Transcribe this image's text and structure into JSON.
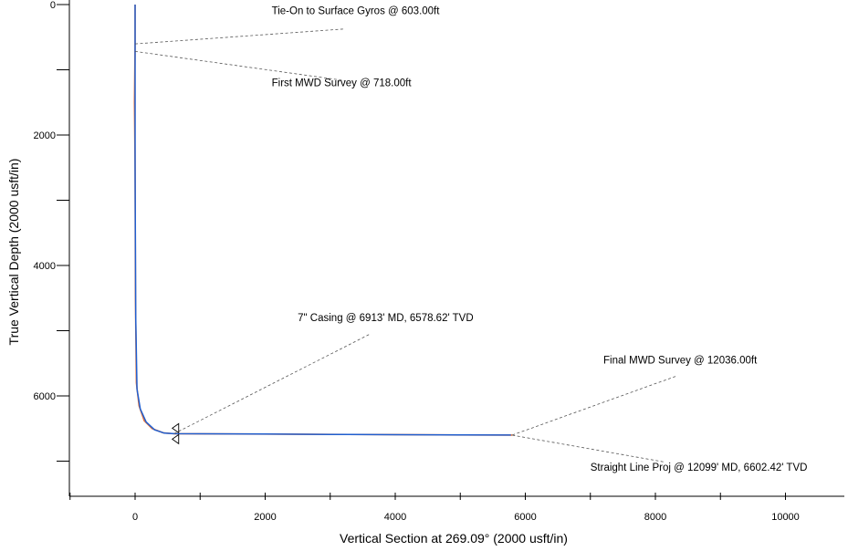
{
  "chart_data": {
    "type": "line",
    "title": "",
    "xlabel": "Vertical Section at 269.09° (2000 usft/in)",
    "ylabel": "True Vertical Depth (2000 usft/in)",
    "xlim": [
      -1000,
      11000
    ],
    "ylim": [
      0,
      7600
    ],
    "y_inverted": true,
    "grid": false,
    "x_ticks": [
      0,
      2000,
      4000,
      6000,
      8000,
      10000
    ],
    "y_ticks": [
      0,
      2000,
      4000,
      6000
    ],
    "series": [
      {
        "color": "#e8743b",
        "x": [
          0,
          0,
          -10,
          0,
          5,
          20,
          60,
          140,
          260,
          430,
          600,
          1000,
          2000,
          3000,
          4000,
          5000,
          5800
        ],
        "y": [
          0,
          603,
          1500,
          2500,
          4500,
          5800,
          6150,
          6380,
          6500,
          6565,
          6580,
          6582,
          6585,
          6590,
          6593,
          6598,
          6600
        ]
      },
      {
        "color": "#1f5fd0",
        "x": [
          0,
          0,
          0,
          0,
          10,
          30,
          80,
          170,
          300,
          450,
          600,
          1000,
          2000,
          3000,
          4000,
          5000,
          5780
        ],
        "y": [
          0,
          603,
          718,
          2500,
          4800,
          5900,
          6200,
          6400,
          6520,
          6570,
          6579,
          6580,
          6585,
          6590,
          6594,
          6598,
          6600
        ]
      }
    ],
    "annotations": [
      {
        "text": "Tie-On to Surface Gyros @ 603.00ft",
        "point": [
          0,
          603
        ],
        "label_at": [
          2100,
          150
        ]
      },
      {
        "text": "First MWD Survey @ 718.00ft",
        "point": [
          0,
          718
        ],
        "label_at": [
          2100,
          1250
        ]
      },
      {
        "text": "7\" Casing @ 6913' MD, 6578.62' TVD",
        "point": [
          600,
          6579
        ],
        "label_at": [
          2500,
          4850
        ]
      },
      {
        "text": "Final MWD Survey @ 12036.00ft",
        "point": [
          5800,
          6600
        ],
        "label_at": [
          7200,
          5500
        ]
      },
      {
        "text": "Straight Line Proj @ 12099' MD, 6602.42' TVD",
        "point": [
          5800,
          6602
        ],
        "label_at": [
          7000,
          7150
        ]
      }
    ]
  }
}
